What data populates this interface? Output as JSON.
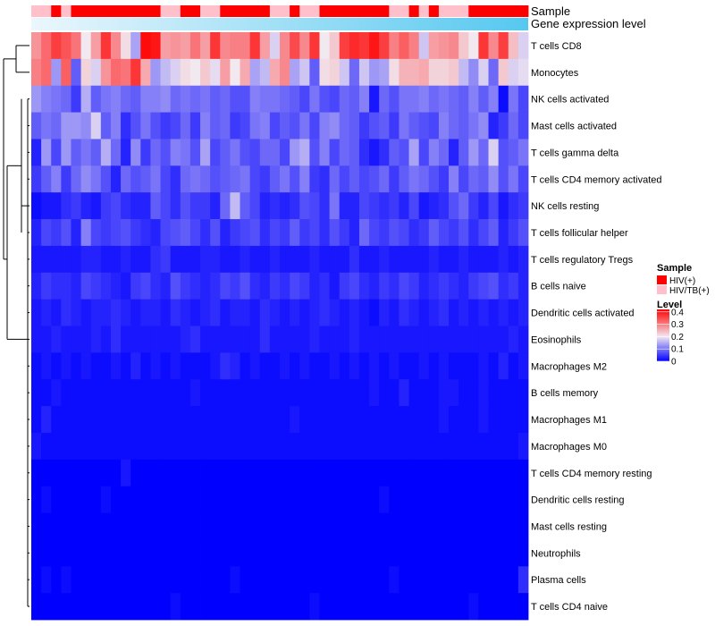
{
  "chart_data": {
    "type": "heatmap",
    "annotation_labels": {
      "sample": "Sample",
      "expression": "Gene expression level"
    },
    "rows": [
      "T cells CD8",
      "Monocytes",
      "NK cells activated",
      "Mast cells activated",
      "T cells gamma delta",
      "T cells CD4 memory activated",
      "NK cells resting",
      "T cells follicular helper",
      "T cells regulatory  Tregs",
      "B cells naive",
      "Dendritic cells activated",
      "Eosinophils",
      "Macrophages M2",
      "B cells memory",
      "Macrophages M1",
      "Macrophages M0",
      "T cells CD4 memory resting",
      "Dendritic cells resting",
      "Mast cells resting",
      "Neutrophils",
      "Plasma cells",
      "T cells CD4 naive"
    ],
    "sample_groups": [
      "HIV/TB(+)",
      "HIV/TB(+)",
      "HIV(+)",
      "HIV/TB(+)",
      "HIV(+)",
      "HIV(+)",
      "HIV(+)",
      "HIV(+)",
      "HIV(+)",
      "HIV(+)",
      "HIV(+)",
      "HIV(+)",
      "HIV(+)",
      "HIV/TB(+)",
      "HIV/TB(+)",
      "HIV(+)",
      "HIV(+)",
      "HIV/TB(+)",
      "HIV/TB(+)",
      "HIV(+)",
      "HIV(+)",
      "HIV(+)",
      "HIV(+)",
      "HIV(+)",
      "HIV/TB(+)",
      "HIV/TB(+)",
      "HIV(+)",
      "HIV/TB(+)",
      "HIV/TB(+)",
      "HIV(+)",
      "HIV(+)",
      "HIV(+)",
      "HIV(+)",
      "HIV(+)",
      "HIV(+)",
      "HIV(+)",
      "HIV/TB(+)",
      "HIV/TB(+)",
      "HIV(+)",
      "HIV/TB(+)",
      "HIV(+)",
      "HIV/TB(+)",
      "HIV/TB(+)",
      "HIV/TB(+)",
      "HIV(+)",
      "HIV(+)",
      "HIV(+)",
      "HIV(+)",
      "HIV(+)",
      "HIV(+)"
    ],
    "values": [
      [
        0.28,
        0.32,
        0.36,
        0.34,
        0.31,
        0.2,
        0.27,
        0.37,
        0.29,
        0.21,
        0.14,
        0.41,
        0.4,
        0.27,
        0.28,
        0.27,
        0.31,
        0.27,
        0.37,
        0.29,
        0.3,
        0.3,
        0.37,
        0.27,
        0.18,
        0.29,
        0.35,
        0.29,
        0.37,
        0.2,
        0.23,
        0.36,
        0.38,
        0.37,
        0.4,
        0.36,
        0.3,
        0.33,
        0.3,
        0.17,
        0.27,
        0.28,
        0.29,
        0.23,
        0.2,
        0.37,
        0.29,
        0.36,
        0.24,
        0.18
      ],
      [
        0.3,
        0.32,
        0.13,
        0.33,
        0.08,
        0.22,
        0.18,
        0.28,
        0.32,
        0.31,
        0.37,
        0.26,
        0.13,
        0.16,
        0.18,
        0.21,
        0.2,
        0.23,
        0.19,
        0.27,
        0.2,
        0.26,
        0.14,
        0.16,
        0.26,
        0.29,
        0.14,
        0.17,
        0.08,
        0.21,
        0.22,
        0.17,
        0.09,
        0.17,
        0.13,
        0.14,
        0.21,
        0.25,
        0.25,
        0.26,
        0.22,
        0.22,
        0.23,
        0.16,
        0.12,
        0.18,
        0.09,
        0.23,
        0.18,
        0.19
      ],
      [
        0.13,
        0.11,
        0.1,
        0.09,
        0.05,
        0.15,
        0.08,
        0.1,
        0.11,
        0.09,
        0.08,
        0.11,
        0.11,
        0.12,
        0.09,
        0.1,
        0.09,
        0.1,
        0.08,
        0.09,
        0.07,
        0.07,
        0.11,
        0.1,
        0.1,
        0.09,
        0.08,
        0.06,
        0.1,
        0.07,
        0.06,
        0.09,
        0.08,
        0.11,
        0.02,
        0.09,
        0.07,
        0.1,
        0.1,
        0.11,
        0.09,
        0.1,
        0.09,
        0.08,
        0.11,
        0.08,
        0.11,
        0.01,
        0.1,
        0.06
      ],
      [
        0.08,
        0.1,
        0.09,
        0.13,
        0.13,
        0.12,
        0.18,
        0.08,
        0.11,
        0.04,
        0.07,
        0.1,
        0.07,
        0.05,
        0.06,
        0.09,
        0.05,
        0.11,
        0.08,
        0.09,
        0.05,
        0.06,
        0.1,
        0.11,
        0.06,
        0.08,
        0.07,
        0.1,
        0.06,
        0.11,
        0.12,
        0.09,
        0.08,
        0.05,
        0.07,
        0.08,
        0.05,
        0.1,
        0.08,
        0.07,
        0.06,
        0.11,
        0.09,
        0.08,
        0.1,
        0.12,
        0.03,
        0.05,
        0.09,
        0.06
      ],
      [
        0.03,
        0.13,
        0.06,
        0.13,
        0.08,
        0.1,
        0.08,
        0.15,
        0.09,
        0.03,
        0.12,
        0.05,
        0.09,
        0.07,
        0.11,
        0.1,
        0.07,
        0.14,
        0.06,
        0.08,
        0.1,
        0.07,
        0.06,
        0.09,
        0.09,
        0.06,
        0.13,
        0.15,
        0.07,
        0.11,
        0.06,
        0.09,
        0.08,
        0.04,
        0.02,
        0.04,
        0.08,
        0.07,
        0.14,
        0.06,
        0.11,
        0.09,
        0.03,
        0.08,
        0.13,
        0.09,
        0.18,
        0.07,
        0.08,
        0.1
      ],
      [
        0.05,
        0.08,
        0.11,
        0.05,
        0.09,
        0.12,
        0.1,
        0.07,
        0.03,
        0.09,
        0.07,
        0.08,
        0.1,
        0.06,
        0.04,
        0.09,
        0.1,
        0.09,
        0.07,
        0.08,
        0.09,
        0.1,
        0.06,
        0.05,
        0.08,
        0.1,
        0.07,
        0.11,
        0.05,
        0.04,
        0.09,
        0.06,
        0.08,
        0.06,
        0.07,
        0.09,
        0.05,
        0.08,
        0.1,
        0.09,
        0.07,
        0.05,
        0.11,
        0.06,
        0.09,
        0.08,
        0.12,
        0.07,
        0.1,
        0.06
      ],
      [
        0.01,
        0.02,
        0.02,
        0.04,
        0.05,
        0.03,
        0.02,
        0.05,
        0.06,
        0.04,
        0.03,
        0.03,
        0.08,
        0.06,
        0.04,
        0.07,
        0.05,
        0.05,
        0.03,
        0.09,
        0.16,
        0.08,
        0.06,
        0.03,
        0.04,
        0.03,
        0.04,
        0.07,
        0.06,
        0.04,
        0.1,
        0.03,
        0.03,
        0.06,
        0.05,
        0.04,
        0.05,
        0.03,
        0.06,
        0.02,
        0.03,
        0.04,
        0.07,
        0.09,
        0.05,
        0.03,
        0.06,
        0.02,
        0.04,
        0.05
      ],
      [
        0.03,
        0.06,
        0.05,
        0.07,
        0.03,
        0.11,
        0.06,
        0.05,
        0.06,
        0.07,
        0.05,
        0.04,
        0.03,
        0.06,
        0.07,
        0.08,
        0.06,
        0.04,
        0.07,
        0.03,
        0.05,
        0.06,
        0.07,
        0.04,
        0.06,
        0.05,
        0.08,
        0.05,
        0.06,
        0.04,
        0.07,
        0.05,
        0.03,
        0.09,
        0.06,
        0.05,
        0.07,
        0.06,
        0.04,
        0.05,
        0.08,
        0.06,
        0.05,
        0.07,
        0.04,
        0.06,
        0.08,
        0.03,
        0.05,
        0.07
      ],
      [
        0.02,
        0.02,
        0.02,
        0.02,
        0.02,
        0.03,
        0.03,
        0.02,
        0.02,
        0.03,
        0.02,
        0.02,
        0.04,
        0.05,
        0.02,
        0.02,
        0.02,
        0.03,
        0.03,
        0.02,
        0.02,
        0.03,
        0.02,
        0.02,
        0.03,
        0.02,
        0.02,
        0.02,
        0.03,
        0.02,
        0.02,
        0.02,
        0.04,
        0.02,
        0.02,
        0.03,
        0.02,
        0.02,
        0.02,
        0.02,
        0.03,
        0.02,
        0.02,
        0.03,
        0.02,
        0.02,
        0.02,
        0.03,
        0.02,
        0.03
      ],
      [
        0.03,
        0.05,
        0.04,
        0.04,
        0.03,
        0.06,
        0.05,
        0.04,
        0.03,
        0.02,
        0.05,
        0.06,
        0.04,
        0.03,
        0.07,
        0.05,
        0.04,
        0.03,
        0.04,
        0.06,
        0.05,
        0.07,
        0.04,
        0.03,
        0.05,
        0.04,
        0.06,
        0.05,
        0.03,
        0.04,
        0.02,
        0.05,
        0.06,
        0.04,
        0.03,
        0.05,
        0.04,
        0.06,
        0.05,
        0.03,
        0.04,
        0.05,
        0.04,
        0.03,
        0.05,
        0.06,
        0.07,
        0.04,
        0.05,
        0.03
      ],
      [
        0.02,
        0.03,
        0.02,
        0.04,
        0.03,
        0.02,
        0.03,
        0.03,
        0.04,
        0.03,
        0.02,
        0.03,
        0.03,
        0.02,
        0.04,
        0.03,
        0.02,
        0.03,
        0.04,
        0.02,
        0.03,
        0.03,
        0.02,
        0.04,
        0.03,
        0.02,
        0.03,
        0.02,
        0.03,
        0.04,
        0.03,
        0.02,
        0.03,
        0.02,
        0.01,
        0.03,
        0.02,
        0.04,
        0.03,
        0.02,
        0.03,
        0.04,
        0.02,
        0.03,
        0.02,
        0.03,
        0.02,
        0.03,
        0.02,
        0.03
      ],
      [
        0.02,
        0.02,
        0.03,
        0.02,
        0.02,
        0.02,
        0.03,
        0.02,
        0.04,
        0.02,
        0.02,
        0.02,
        0.02,
        0.02,
        0.02,
        0.03,
        0.04,
        0.02,
        0.02,
        0.02,
        0.02,
        0.02,
        0.02,
        0.04,
        0.02,
        0.02,
        0.02,
        0.02,
        0.03,
        0.02,
        0.02,
        0.02,
        0.03,
        0.02,
        0.02,
        0.02,
        0.02,
        0.02,
        0.02,
        0.02,
        0.02,
        0.02,
        0.02,
        0.02,
        0.02,
        0.02,
        0.02,
        0.02,
        0.03,
        0.02
      ],
      [
        0.01,
        0.02,
        0.01,
        0.02,
        0.01,
        0.02,
        0.01,
        0.01,
        0.02,
        0.01,
        0.03,
        0.01,
        0.02,
        0.01,
        0.02,
        0.01,
        0.01,
        0.01,
        0.02,
        0.04,
        0.03,
        0.01,
        0.02,
        0.01,
        0.01,
        0.02,
        0.01,
        0.02,
        0.01,
        0.01,
        0.02,
        0.01,
        0.02,
        0.01,
        0.02,
        0.01,
        0.02,
        0.01,
        0.01,
        0.02,
        0.01,
        0.02,
        0.01,
        0.01,
        0.01,
        0.02,
        0.01,
        0.03,
        0.01,
        0.02
      ],
      [
        0.01,
        0.01,
        0.02,
        0.01,
        0.01,
        0.01,
        0.01,
        0.01,
        0.01,
        0.01,
        0.01,
        0.01,
        0.01,
        0.01,
        0.01,
        0.01,
        0.02,
        0.01,
        0.01,
        0.01,
        0.01,
        0.01,
        0.01,
        0.01,
        0.01,
        0.01,
        0.01,
        0.01,
        0.01,
        0.01,
        0.01,
        0.01,
        0.01,
        0.01,
        0.02,
        0.01,
        0.01,
        0.03,
        0.01,
        0.01,
        0.01,
        0.02,
        0.02,
        0.01,
        0.01,
        0.02,
        0.01,
        0.01,
        0.01,
        0.01
      ],
      [
        0.01,
        0.03,
        0.01,
        0.01,
        0.01,
        0.01,
        0.01,
        0.01,
        0.01,
        0.01,
        0.01,
        0.01,
        0.01,
        0.01,
        0.01,
        0.01,
        0.01,
        0.01,
        0.01,
        0.01,
        0.01,
        0.01,
        0.01,
        0.01,
        0.01,
        0.01,
        0.02,
        0.01,
        0.01,
        0.01,
        0.01,
        0.01,
        0.01,
        0.01,
        0.01,
        0.01,
        0.01,
        0.01,
        0.01,
        0.01,
        0.01,
        0.02,
        0.01,
        0.01,
        0.01,
        0.02,
        0.01,
        0.01,
        0.01,
        0.01
      ],
      [
        0.02,
        0.01,
        0.01,
        0.01,
        0.01,
        0.01,
        0.01,
        0.01,
        0.01,
        0.01,
        0.01,
        0.01,
        0.01,
        0.01,
        0.01,
        0.01,
        0.01,
        0.01,
        0.01,
        0.01,
        0.01,
        0.01,
        0.01,
        0.01,
        0.01,
        0.01,
        0.01,
        0.01,
        0.01,
        0.01,
        0.01,
        0.01,
        0.01,
        0.01,
        0.01,
        0.01,
        0.01,
        0.01,
        0.01,
        0.01,
        0.01,
        0.01,
        0.01,
        0.01,
        0.01,
        0.01,
        0.01,
        0.01,
        0.01,
        0.02
      ],
      [
        0.0,
        0.0,
        0.0,
        0.0,
        0.0,
        0.0,
        0.0,
        0.0,
        0.0,
        0.02,
        0.0,
        0.0,
        0.0,
        0.0,
        0.0,
        0.0,
        0.0,
        0.0,
        0.0,
        0.0,
        0.0,
        0.0,
        0.0,
        0.0,
        0.0,
        0.0,
        0.0,
        0.0,
        0.0,
        0.0,
        0.0,
        0.0,
        0.0,
        0.0,
        0.0,
        0.0,
        0.0,
        0.0,
        0.0,
        0.0,
        0.0,
        0.0,
        0.0,
        0.0,
        0.0,
        0.0,
        0.0,
        0.0,
        0.0,
        0.0
      ],
      [
        0.0,
        0.01,
        0.0,
        0.0,
        0.0,
        0.0,
        0.0,
        0.01,
        0.0,
        0.0,
        0.0,
        0.0,
        0.0,
        0.0,
        0.0,
        0.0,
        0.0,
        0.0,
        0.0,
        0.0,
        0.0,
        0.0,
        0.0,
        0.0,
        0.0,
        0.0,
        0.0,
        0.0,
        0.0,
        0.0,
        0.0,
        0.0,
        0.0,
        0.0,
        0.0,
        0.01,
        0.0,
        0.0,
        0.0,
        0.0,
        0.0,
        0.0,
        0.0,
        0.0,
        0.0,
        0.0,
        0.0,
        0.0,
        0.0,
        0.0
      ],
      [
        0.0,
        0.0,
        0.0,
        0.0,
        0.0,
        0.0,
        0.0,
        0.0,
        0.0,
        0.0,
        0.0,
        0.0,
        0.0,
        0.0,
        0.0,
        0.0,
        0.0,
        0.0,
        0.0,
        0.0,
        0.0,
        0.0,
        0.0,
        0.0,
        0.0,
        0.0,
        0.0,
        0.0,
        0.0,
        0.0,
        0.0,
        0.0,
        0.0,
        0.0,
        0.0,
        0.0,
        0.0,
        0.0,
        0.0,
        0.0,
        0.0,
        0.0,
        0.0,
        0.0,
        0.0,
        0.0,
        0.0,
        0.0,
        0.0,
        0.0
      ],
      [
        0.0,
        0.0,
        0.0,
        0.0,
        0.0,
        0.0,
        0.0,
        0.0,
        0.0,
        0.0,
        0.0,
        0.0,
        0.0,
        0.0,
        0.0,
        0.0,
        0.0,
        0.0,
        0.0,
        0.0,
        0.0,
        0.0,
        0.0,
        0.0,
        0.0,
        0.0,
        0.0,
        0.0,
        0.0,
        0.0,
        0.0,
        0.0,
        0.0,
        0.0,
        0.0,
        0.0,
        0.0,
        0.0,
        0.0,
        0.0,
        0.0,
        0.0,
        0.0,
        0.0,
        0.0,
        0.0,
        0.0,
        0.0,
        0.0,
        0.0
      ],
      [
        0.0,
        0.01,
        0.0,
        0.01,
        0.0,
        0.0,
        0.0,
        0.0,
        0.0,
        0.0,
        0.0,
        0.0,
        0.0,
        0.0,
        0.0,
        0.0,
        0.0,
        0.0,
        0.0,
        0.0,
        0.01,
        0.0,
        0.0,
        0.0,
        0.0,
        0.0,
        0.0,
        0.0,
        0.0,
        0.0,
        0.0,
        0.0,
        0.0,
        0.0,
        0.0,
        0.0,
        0.01,
        0.0,
        0.0,
        0.0,
        0.0,
        0.0,
        0.0,
        0.0,
        0.0,
        0.0,
        0.0,
        0.0,
        0.0,
        0.04
      ],
      [
        0.0,
        0.0,
        0.0,
        0.0,
        0.0,
        0.0,
        0.0,
        0.0,
        0.0,
        0.0,
        0.0,
        0.0,
        0.0,
        0.0,
        0.01,
        0.0,
        0.0,
        0.0,
        0.0,
        0.0,
        0.0,
        0.0,
        0.0,
        0.0,
        0.0,
        0.0,
        0.0,
        0.0,
        0.01,
        0.0,
        0.0,
        0.0,
        0.0,
        0.0,
        0.0,
        0.0,
        0.0,
        0.0,
        0.0,
        0.0,
        0.0,
        0.0,
        0.0,
        0.0,
        0.01,
        0.0,
        0.0,
        0.0,
        0.0,
        0.0
      ]
    ],
    "color_scale": {
      "min": 0,
      "max": 0.42,
      "stops": [
        {
          "value": 0,
          "color": "#0000ff"
        },
        {
          "value": 0.2,
          "color": "#f2e8f0"
        },
        {
          "value": 0.42,
          "color": "#ff0000"
        }
      ]
    },
    "group_colors": {
      "HIV(+)": "#ff0000",
      "HIV/TB(+)": "#ffc0cb"
    },
    "legend": {
      "sample_title": "Sample",
      "sample_items": [
        "HIV(+)",
        "HIV/TB(+)"
      ],
      "level_title": "Level",
      "level_ticks": [
        0.4,
        0.3,
        0.2,
        0.1,
        0
      ],
      "level_tick_labels": [
        "0.4",
        "0.3",
        "0.2",
        "0.1",
        "0"
      ],
      "placement": "right"
    },
    "expression_gradient": {
      "from": "#ebf7fc",
      "to": "#56c8f0"
    },
    "row_dendrogram": true
  }
}
